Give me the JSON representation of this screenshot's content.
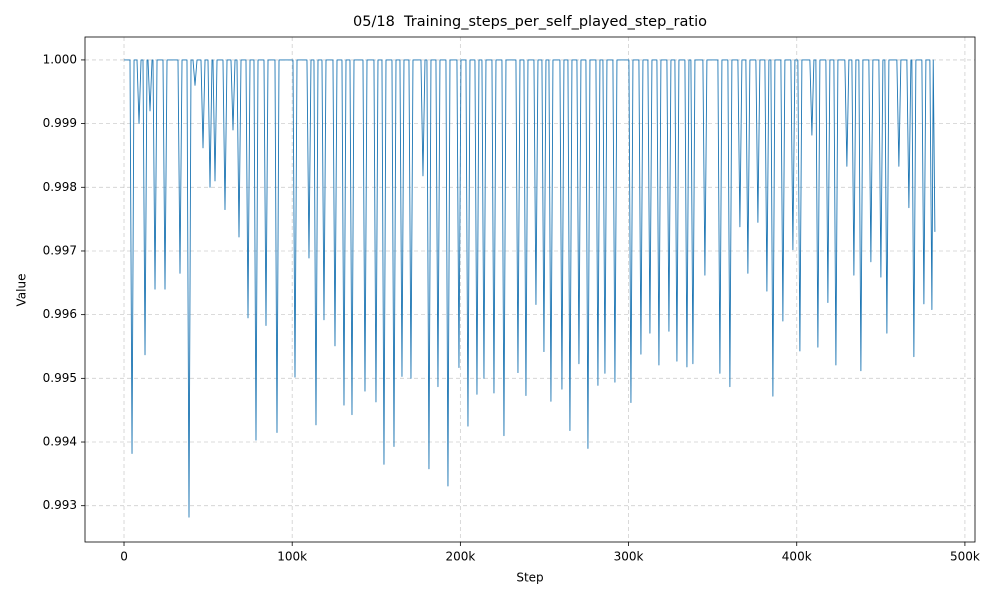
{
  "chart_data": {
    "type": "line",
    "title": "05/18  Training_steps_per_self_played_step_ratio",
    "xlabel": "Step",
    "ylabel": "Value",
    "xlim": [
      -23200,
      506000
    ],
    "ylim": [
      0.99243,
      1.00036
    ],
    "xticks": [
      0,
      {
        "value": 100000,
        "label": "100k"
      },
      {
        "value": 200000,
        "label": "200k"
      },
      {
        "value": 300000,
        "label": "300k"
      },
      {
        "value": 400000,
        "label": "400k"
      },
      {
        "value": 500000,
        "label": "500k"
      }
    ],
    "yticks": [
      0.993,
      0.994,
      0.995,
      0.996,
      0.997,
      0.998,
      0.999,
      {
        "value": 1,
        "label": "1.000"
      }
    ],
    "grid": true,
    "x": [
      0,
      3560,
      4760,
      5960,
      7720,
      8920,
      10120,
      11280,
      12480,
      13680,
      14260,
      15460,
      16660,
      17230,
      18430,
      19630,
      23170,
      24370,
      25570,
      32090,
      33290,
      34490,
      37440,
      38640,
      39840,
      41010,
      42210,
      43410,
      45770,
      46970,
      48170,
      49930,
      51130,
      52330,
      52900,
      54100,
      55300,
      58840,
      60040,
      61240,
      63600,
      64800,
      66000,
      67170,
      68370,
      69570,
      72520,
      73720,
      74920,
      77270,
      78470,
      79670,
      83220,
      84420,
      85620,
      89760,
      90960,
      92160,
      100460,
      101660,
      102860,
      108780,
      109980,
      111180,
      112940,
      114140,
      115340,
      117700,
      118900,
      120100,
      124240,
      125440,
      126640,
      129590,
      130790,
      131990,
      134350,
      135550,
      136750,
      142080,
      143280,
      144480,
      148610,
      149810,
      151010,
      153370,
      154570,
      155770,
      159320,
      160520,
      161720,
      164070,
      165270,
      166470,
      169420,
      170620,
      171820,
      176560,
      177760,
      178960,
      180120,
      181320,
      182520,
      185470,
      186670,
      187870,
      191420,
      192620,
      193820,
      197960,
      199160,
      200360,
      203310,
      204510,
      205710,
      208660,
      209860,
      211060,
      212820,
      214020,
      215220,
      218770,
      219970,
      221170,
      224710,
      225910,
      227110,
      233040,
      234240,
      235440,
      237790,
      238990,
      240190,
      243740,
      244940,
      246140,
      248490,
      249690,
      250890,
      252650,
      253850,
      255050,
      259190,
      260390,
      261590,
      263950,
      265150,
      266350,
      269300,
      270500,
      271700,
      274650,
      275850,
      277050,
      280590,
      281790,
      282990,
      284760,
      285960,
      287160,
      290700,
      291900,
      293100,
      300220,
      301420,
      302620,
      306160,
      307360,
      308560,
      311510,
      312710,
      313910,
      316860,
      318060,
      319260,
      322810,
      324010,
      325210,
      327560,
      328760,
      329960,
      333510,
      334710,
      335910,
      337070,
      338270,
      339470,
      344200,
      345400,
      346600,
      353120,
      354320,
      355520,
      359060,
      360260,
      361460,
      365010,
      366210,
      367410,
      369760,
      370960,
      372160,
      375710,
      376910,
      378110,
      381060,
      382260,
      383460,
      384630,
      385830,
      387030,
      390570,
      391770,
      392970,
      396520,
      397720,
      398920,
      400680,
      401880,
      403080,
      407820,
      409020,
      410220,
      411380,
      412580,
      413780,
      417330,
      418530,
      419730,
      422090,
      423290,
      424490,
      428620,
      429820,
      431020,
      432790,
      433990,
      435190,
      436950,
      438150,
      439350,
      442890,
      444090,
      445290,
      448840,
      450040,
      451240,
      452410,
      453610,
      454810,
      459540,
      460740,
      461940,
      465490,
      466690,
      467890,
      468460,
      469660,
      470860,
      474410,
      475610,
      476810,
      479170,
      480370,
      481170,
      482150
    ],
    "series": [
      {
        "color": "#1f77b4",
        "values": [
          1,
          1,
          0.99382,
          1,
          1,
          0.999,
          1,
          1,
          0.99537,
          1,
          1,
          0.9992,
          1,
          1,
          0.9964,
          1,
          1,
          0.9964,
          1,
          1,
          0.99665,
          1,
          1,
          0.99282,
          1,
          1,
          0.9996,
          1,
          1,
          0.99862,
          1,
          1,
          0.998,
          1,
          1,
          0.9981,
          1,
          1,
          0.99765,
          1,
          1,
          0.9989,
          1,
          1,
          0.99722,
          1,
          1,
          0.99595,
          1,
          1,
          0.99403,
          1,
          1,
          0.99583,
          1,
          1,
          0.99415,
          1,
          1,
          0.99502,
          1,
          1,
          0.99689,
          1,
          1,
          0.99427,
          1,
          1,
          0.99592,
          1,
          1,
          0.99551,
          1,
          1,
          0.99458,
          1,
          1,
          0.99443,
          1,
          1,
          0.9948,
          1,
          1,
          0.99463,
          1,
          1,
          0.99365,
          1,
          1,
          0.99393,
          1,
          1,
          0.99503,
          1,
          1,
          0.995,
          1,
          1,
          0.99818,
          1,
          1,
          0.99358,
          1,
          1,
          0.99487,
          1,
          1,
          0.99331,
          1,
          1,
          0.99517,
          1,
          1,
          0.99425,
          1,
          1,
          0.99475,
          1,
          1,
          0.995,
          1,
          1,
          0.99477,
          1,
          1,
          0.9941,
          1,
          1,
          0.99509,
          1,
          1,
          0.99473,
          1,
          1,
          0.99616,
          1,
          1,
          0.99542,
          1,
          1,
          0.99464,
          1,
          1,
          0.99483,
          1,
          1,
          0.99418,
          1,
          1,
          0.99523,
          1,
          1,
          0.9939,
          1,
          1,
          0.99489,
          1,
          1,
          0.99508,
          1,
          1,
          0.99494,
          1,
          1,
          0.99462,
          1,
          1,
          0.99538,
          1,
          1,
          0.99571,
          1,
          1,
          0.99521,
          1,
          1,
          0.99574,
          1,
          1,
          0.99527,
          1,
          1,
          0.99518,
          1,
          1,
          0.99523,
          1,
          1,
          0.99662,
          1,
          1,
          0.99508,
          1,
          1,
          0.99487,
          1,
          1,
          0.99738,
          1,
          1,
          0.99665,
          1,
          1,
          0.99745,
          1,
          1,
          0.99637,
          1,
          1,
          0.99472,
          1,
          1,
          0.9959,
          1,
          1,
          0.99702,
          1,
          1,
          0.99543,
          1,
          1,
          0.99882,
          1,
          1,
          0.99549,
          1,
          1,
          0.99619,
          1,
          1,
          0.99521,
          1,
          1,
          0.99833,
          1,
          1,
          0.99662,
          1,
          1,
          0.99512,
          1,
          1,
          0.99683,
          1,
          1,
          0.99659,
          1,
          1,
          0.99571,
          1,
          1,
          0.99833,
          1,
          1,
          0.99768,
          1,
          1,
          0.99534,
          1,
          1,
          0.99617,
          1,
          1,
          0.99608,
          1,
          0.9973
        ]
      }
    ]
  }
}
